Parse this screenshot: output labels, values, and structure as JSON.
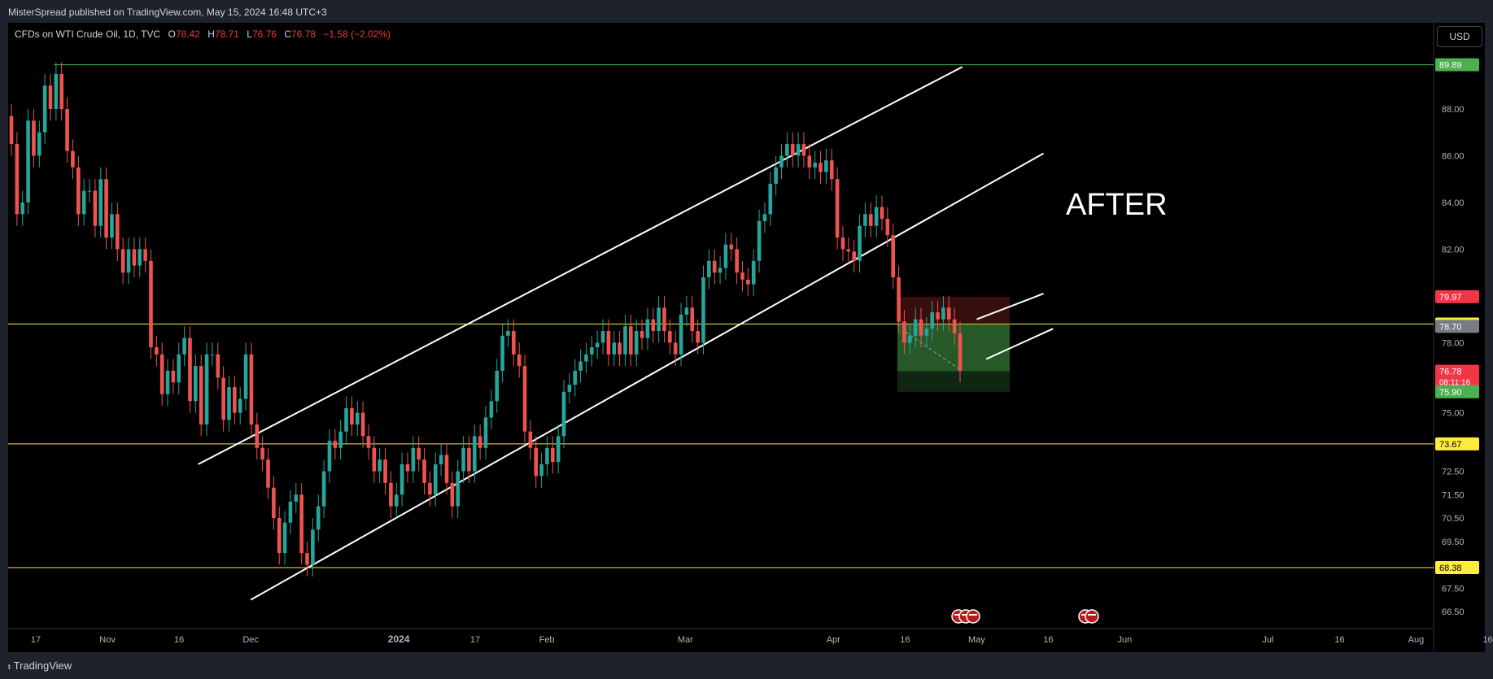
{
  "header": {
    "published": "MisterSpread published on TradingView.com, May 15, 2024 16:48 UTC+3"
  },
  "legend": {
    "symbol": "CFDs on WTI Crude Oil, 1D, TVC",
    "o_label": "O",
    "o_value": "78.42",
    "h_label": "H",
    "h_value": "78.71",
    "l_label": "L",
    "l_value": "76.76",
    "c_label": "C",
    "c_value": "76.78",
    "change": "−1.58 (−2.02%)"
  },
  "currency_button": "USD",
  "annotation": "AFTER",
  "footer": {
    "brand": "TradingView",
    "icon": "tradingview-logo-icon"
  },
  "colors": {
    "up": "#26a69a",
    "down": "#ef5350",
    "level": "#ffeb3b",
    "top_level": "#4caf50",
    "channel": "#ffffff"
  },
  "chart_data": {
    "type": "candlestick",
    "symbol": "CFDs on WTI Crude Oil, 1D, TVC",
    "ylim": [
      65.5,
      91.5
    ],
    "price_ticks": [
      "88.00",
      "86.00",
      "84.00",
      "82.00",
      "78.00",
      "75.00",
      "72.50",
      "71.50",
      "70.50",
      "69.50",
      "67.50",
      "66.50"
    ],
    "x_ticks": [
      "17",
      "Nov",
      "16",
      "Dec",
      "2024",
      "17",
      "Feb",
      "Mar",
      "Apr",
      "16",
      "May",
      "16",
      "Jun",
      "Jul",
      "16",
      "Aug",
      "16"
    ],
    "price_tags": [
      {
        "label": "89.89",
        "value": 89.89,
        "kind": "green"
      },
      {
        "label": "79.97",
        "value": 79.97,
        "kind": "red"
      },
      {
        "label": "78.80",
        "value": 78.8,
        "kind": "yellow"
      },
      {
        "label": "78.70",
        "value": 78.7,
        "kind": "gray"
      },
      {
        "label": "76.78",
        "value": 76.78,
        "kind": "red",
        "sub": "08:11:16"
      },
      {
        "label": "75.90",
        "value": 75.9,
        "kind": "green"
      },
      {
        "label": "73.67",
        "value": 73.67,
        "kind": "yellow"
      },
      {
        "label": "68.38",
        "value": 68.38,
        "kind": "yellow"
      }
    ],
    "horizontal_levels": [
      89.89,
      78.8,
      73.67,
      68.38
    ],
    "position": {
      "stop": 79.97,
      "entry": 78.8,
      "current": 76.78,
      "target": 75.9
    },
    "channel_lines": [
      {
        "from": [
          "2023-11-20",
          72.8
        ],
        "to": [
          "2024-04-28",
          89.8
        ]
      },
      {
        "from": [
          "2023-12-01",
          67.0
        ],
        "to": [
          "2024-05-15",
          86.1
        ]
      }
    ],
    "closes": [
      86.5,
      83.5,
      84.0,
      87.5,
      86.0,
      87.0,
      89.0,
      88.0,
      89.5,
      88.0,
      86.2,
      85.5,
      83.5,
      84.5,
      84.5,
      83.0,
      85.0,
      82.5,
      83.5,
      82.0,
      81.0,
      82.0,
      81.3,
      82.0,
      81.5,
      77.8,
      77.5,
      75.8,
      76.8,
      76.3,
      77.5,
      78.2,
      75.5,
      77.0,
      74.5,
      77.5,
      77.5,
      76.5,
      74.7,
      76.1,
      75.0,
      75.6,
      77.5,
      74.5,
      73.5,
      73.0,
      71.8,
      70.5,
      69.0,
      70.3,
      71.2,
      71.5,
      69.0,
      68.5,
      70.0,
      71.0,
      72.5,
      73.8,
      73.5,
      74.2,
      75.2,
      74.5,
      75.0,
      74.0,
      73.5,
      72.5,
      73.0,
      72.0,
      71.0,
      71.5,
      72.8,
      72.5,
      73.5,
      73.0,
      72.0,
      71.5,
      72.8,
      73.2,
      72.0,
      71.0,
      72.5,
      73.5,
      72.5,
      74.0,
      73.5,
      74.8,
      75.5,
      76.8,
      78.3,
      78.5,
      77.5,
      77.0,
      74.2,
      73.5,
      72.3,
      72.8,
      73.5,
      72.9,
      74.0,
      75.9,
      76.2,
      76.8,
      77.2,
      77.5,
      77.8,
      78.0,
      78.5,
      77.5,
      78.0,
      77.5,
      78.7,
      77.5,
      78.5,
      78.2,
      79.0,
      78.5,
      79.5,
      78.5,
      78.0,
      77.5,
      79.2,
      79.5,
      78.5,
      78.0,
      80.8,
      81.5,
      81.0,
      81.2,
      82.2,
      82.0,
      81.0,
      80.7,
      80.5,
      81.5,
      83.2,
      83.5,
      84.8,
      85.5,
      86.0,
      86.5,
      86.0,
      86.5,
      86.0,
      85.5,
      85.7,
      85.3,
      85.8,
      85.0,
      82.5,
      82.0,
      81.9,
      81.5,
      83.0,
      83.5,
      83.0,
      83.8,
      83.3,
      82.6,
      80.8,
      78.9,
      78.0,
      78.3,
      79.0,
      78.3,
      78.6,
      79.3,
      79.0,
      79.5,
      79.0,
      78.4,
      76.8
    ]
  }
}
